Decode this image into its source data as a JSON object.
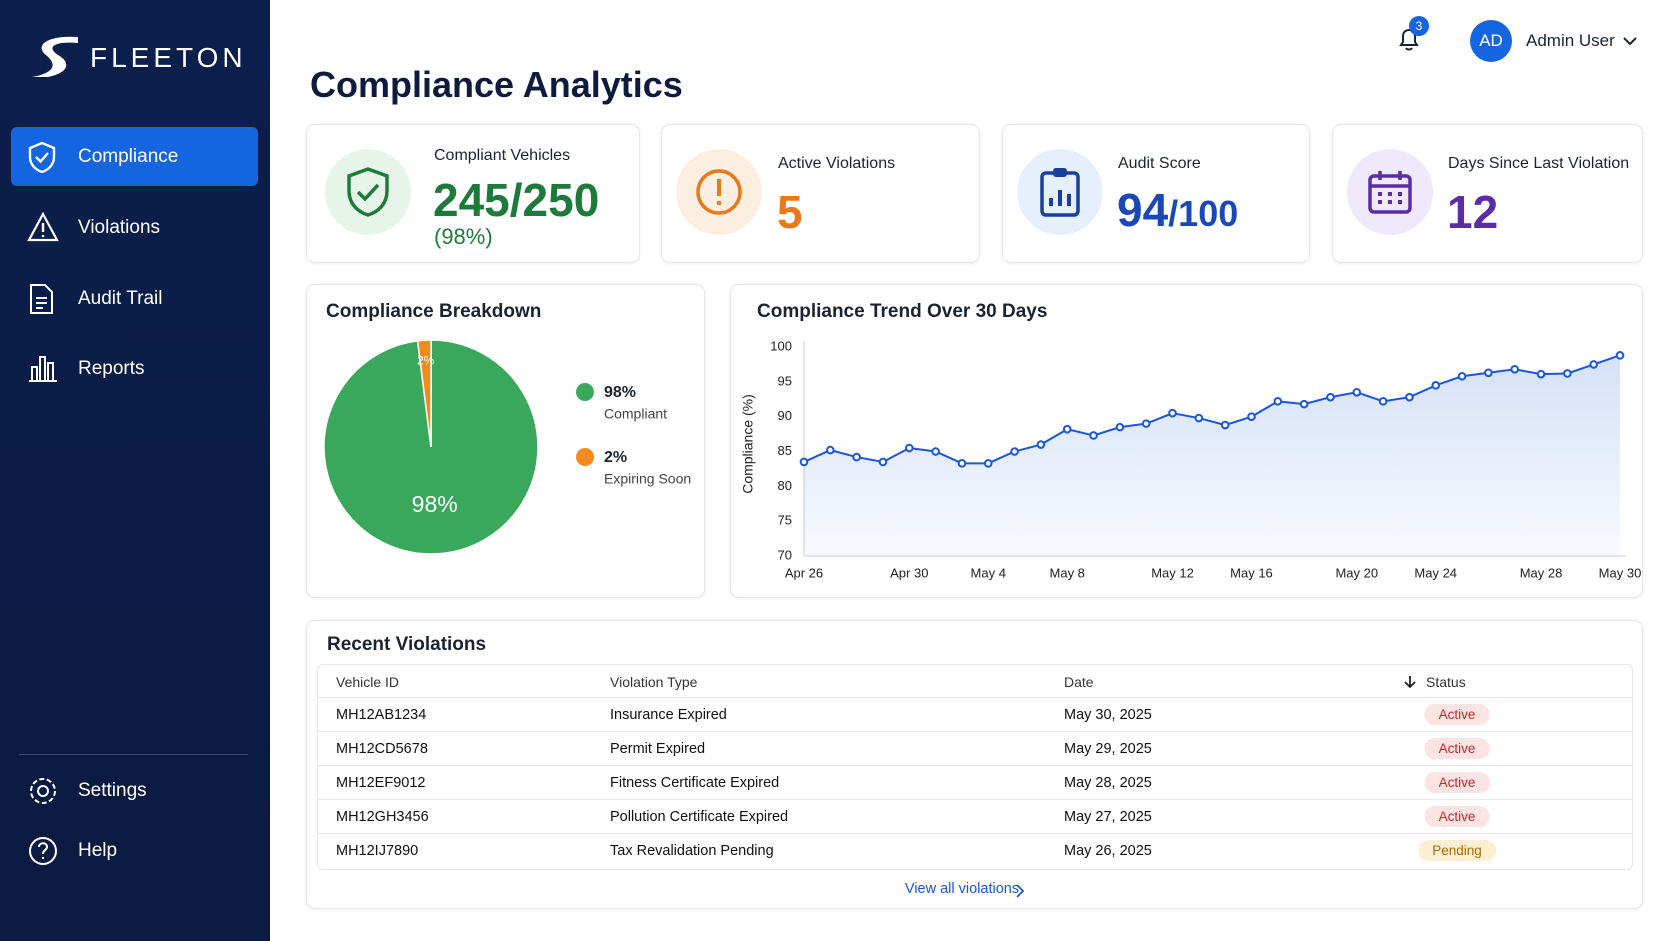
{
  "sidebar": {
    "logo": "FLEETON",
    "nav": [
      "Compliance",
      "Violations",
      "Audit Trail",
      "Reports"
    ],
    "footer_nav": [
      "Settings",
      "Help"
    ]
  },
  "header": {
    "notifications": "3",
    "avatar": "AD",
    "user": "Admin User"
  },
  "title": "Compliance Analytics",
  "kpis": [
    {
      "label": "Compliant Vehicles",
      "value": "245",
      "suffix": "/250",
      "note": "(98%)"
    },
    {
      "label": "Active Violations",
      "value": "5"
    },
    {
      "label": "Audit Score",
      "value": "94",
      "suffix": "/100"
    },
    {
      "label": "Days Since Last Violation",
      "value": "12"
    }
  ],
  "chart_data": [
    {
      "type": "pie",
      "title": "Compliance Breakdown",
      "categories": [
        "Compliant",
        "Expiring Soon"
      ],
      "values": [
        98,
        2
      ],
      "value_labels": [
        "98%",
        "2%"
      ],
      "colors": [
        "#3aa85c",
        "#f28a1e"
      ]
    },
    {
      "type": "line",
      "title": "Compliance Trend Over 30 Days",
      "ylabel": "Compliance (%)",
      "categories": [
        "Apr 26",
        null,
        null,
        null,
        "Apr 30",
        null,
        null,
        "May 4",
        null,
        null,
        "May 8",
        null,
        null,
        null,
        "May 12",
        null,
        null,
        "May 16",
        null,
        null,
        null,
        "May 20",
        null,
        null,
        "May 24",
        null,
        null,
        null,
        "May 28",
        null,
        null,
        "May 30"
      ],
      "values": [
        83.5,
        85.2,
        84.2,
        83.5,
        85.5,
        85,
        83.3,
        83.3,
        85,
        86,
        88.2,
        87.3,
        88.5,
        89,
        90.5,
        89.8,
        88.8,
        90,
        92.2,
        91.8,
        92.8,
        93.5,
        92.2,
        92.8,
        94.5,
        95.8,
        96.3,
        96.8,
        96.1,
        96.2,
        97.5,
        98.8
      ],
      "color": "#1a56db",
      "ylim": [
        70,
        100
      ],
      "yticks": [
        70,
        75,
        80,
        85,
        90,
        95,
        100
      ],
      "grid": false
    }
  ],
  "violations": {
    "title": "Recent Violations",
    "columns": [
      "Vehicle ID",
      "Violation Type",
      "Date",
      "Status"
    ],
    "rows": [
      [
        "MH12AB1234",
        "Insurance Expired",
        "May 30, 2025",
        "Active"
      ],
      [
        "MH12CD5678",
        "Permit Expired",
        "May 29, 2025",
        "Active"
      ],
      [
        "MH12EF9012",
        "Fitness Certificate Expired",
        "May 28, 2025",
        "Active"
      ],
      [
        "MH12GH3456",
        "Pollution Certificate Expired",
        "May 27, 2025",
        "Active"
      ],
      [
        "MH12IJ7890",
        "Tax Revalidation Pending",
        "May 26, 2025",
        "Pending"
      ]
    ],
    "status_colors": {
      "Active": {
        "bg": "#fde4e4",
        "fg": "#c62828"
      },
      "Pending": {
        "bg": "#fdf0d2",
        "fg": "#b26a00"
      }
    },
    "link": "View all violations"
  }
}
